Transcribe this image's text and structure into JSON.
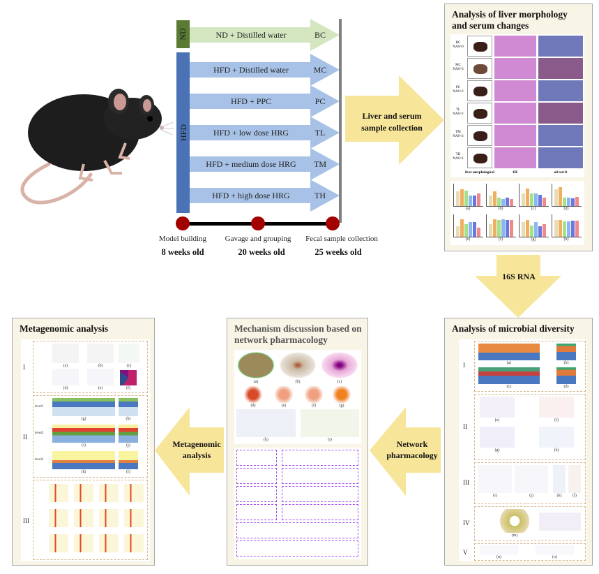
{
  "groups": {
    "nd_label": "ND",
    "hfd_label": "HFD",
    "rows": [
      {
        "treatment": "ND + Distilled water",
        "code": "BC"
      },
      {
        "treatment": "HFD + Distilled water",
        "code": "MC"
      },
      {
        "treatment": "HFD + PPC",
        "code": "PC"
      },
      {
        "treatment": "HFD + low dose HRG",
        "code": "TL"
      },
      {
        "treatment": "HFD + medium dose HRG",
        "code": "TM"
      },
      {
        "treatment": "HFD + high dose HRG",
        "code": "TH"
      }
    ]
  },
  "timeline": [
    {
      "event": "Model building",
      "age": "8 weeks old"
    },
    {
      "event": "Gavage and grouping",
      "age": "20 weeks old"
    },
    {
      "event": "Fecal sample collection",
      "age": "25 weeks old"
    }
  ],
  "arrows": {
    "liver_serum": [
      "Liver and serum",
      "sample collection"
    ],
    "rna": "16S RNA",
    "network": [
      "Network",
      "pharmacology"
    ],
    "metagenomic": [
      "Metagenomic",
      "analysis"
    ]
  },
  "liver_panel": {
    "title": "Analysis of liver morphology and serum changes",
    "rows": [
      {
        "group": "BC",
        "nas": "NAS=0"
      },
      {
        "group": "MC",
        "nas": "NAS=3"
      },
      {
        "group": "PC",
        "nas": "NAS=2"
      },
      {
        "group": "TL",
        "nas": "NAS=2"
      },
      {
        "group": "TM",
        "nas": "NAS=2"
      },
      {
        "group": "TH",
        "nas": "NAS=1"
      }
    ],
    "columns": [
      "liver morphological",
      "HE",
      "oil red O"
    ],
    "chart_labels": [
      "(a)",
      "(b)",
      "(c)",
      "(d)",
      "(e)",
      "(f)",
      "(g)",
      "(h)"
    ]
  },
  "microbial_panel": {
    "title": "Analysis of microbial diversity",
    "sections": [
      "I",
      "II",
      "III",
      "IV",
      "V"
    ],
    "labels": [
      "(a)",
      "(b)",
      "(c)",
      "(d)",
      "(e)",
      "(f)",
      "(g)",
      "(h)",
      "(i)",
      "(j)",
      "(k)",
      "(l)",
      "(m)",
      "(n)",
      "(o)"
    ]
  },
  "network_panel": {
    "title": "Mechanism discussion based on network pharmacology",
    "labels": [
      "(a)",
      "(b)",
      "(c)",
      "(d)",
      "(e)",
      "(f)",
      "(g)",
      "(h)",
      "(i)"
    ]
  },
  "metagenomic_panel": {
    "title": "Metagenomic analysis",
    "sections": [
      "I",
      "II",
      "III"
    ],
    "levels": [
      "level1",
      "level2",
      "level3"
    ],
    "labels": [
      "(a)",
      "(b)",
      "(c)",
      "(d)",
      "(e)",
      "(f)",
      "(g)",
      "(h)",
      "(i)",
      "(j)",
      "(k)",
      "(l)"
    ]
  },
  "colors": {
    "nd_dark": "#5b7b35",
    "nd_arrow": "#d3e6c0",
    "hfd_dark": "#4a72b5",
    "hfd_arrow": "#a7c2e6",
    "timeline_dot": "#a30000",
    "yellow_arrow": "#f7e59a",
    "panel_bg": "#f8f4e6"
  }
}
